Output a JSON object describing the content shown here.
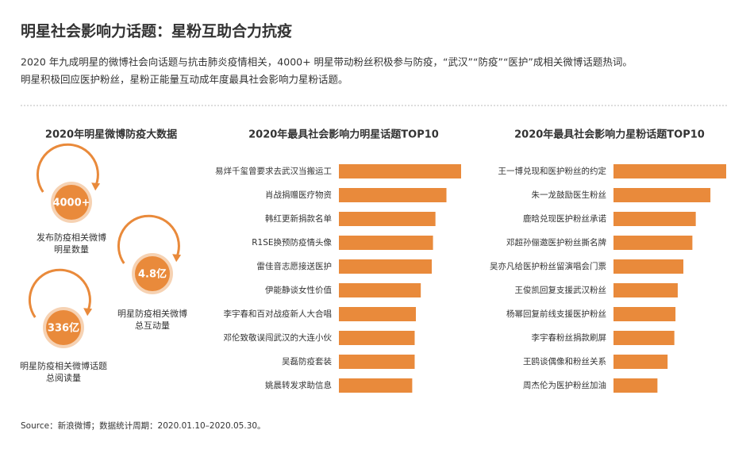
{
  "header": {
    "title": "明星社会影响力话题：星粉互助合力抗疫",
    "description": [
      "2020 年九成明星的微博社会向话题与抗击肺炎疫情相关，4000+ 明星带动粉丝积极参与防疫，“武汉”“防疫”“医护”成相关微博话题热词。",
      "明星积极回应医护粉丝，星粉正能量互动成年度最具社会影响力星粉话题。"
    ]
  },
  "stats": {
    "title": "2020年明星微博防疫大数据",
    "items": [
      {
        "value": "4000+",
        "label": [
          "发布防疫相关微博",
          "明星数量"
        ]
      },
      {
        "value": "4.8亿",
        "label": [
          "明星防疫相关微博",
          "总互动量"
        ]
      },
      {
        "value": "336亿",
        "label": [
          "明星防疫相关微博话题",
          "总阅读量"
        ]
      }
    ]
  },
  "chart_data": [
    {
      "type": "hbar",
      "title": "2020年最具社会影响力明星话题TOP10",
      "color": "#e98a3b",
      "categories": [
        "易烊千玺曾要求去武汉当搬运工",
        "肖战捐赠医疗物资",
        "韩红更新捐款名单",
        "R1SE换预防疫情头像",
        "雷佳音志愿接送医护",
        "伊能静谈女性价值",
        "李宇春和百对战疫新人大合唱",
        "邓伦致敬误闯武汉的大连小伙",
        "吴磊防疫套装",
        "姚晨转发求助信息"
      ],
      "values": [
        100,
        88,
        79,
        77,
        76,
        67,
        63,
        62,
        62,
        60
      ]
    },
    {
      "type": "hbar",
      "title": "2020年最具社会影响力星粉话题TOP10",
      "color": "#e98a3b",
      "categories": [
        "王一博兑现和医护粉丝的约定",
        "朱一龙鼓励医生粉丝",
        "鹿晗兑现医护粉丝承诺",
        "邓超孙俪邀医护粉丝撕名牌",
        "吴亦凡给医护粉丝留演唱会门票",
        "王俊凯回复支援武汉粉丝",
        "杨幂回复前线支援医护粉丝",
        "李宇春粉丝捐款刷屏",
        "王鸥谈偶像和粉丝关系",
        "周杰伦为医护粉丝加油"
      ],
      "values": [
        100,
        86,
        73,
        70,
        62,
        57,
        55,
        54,
        48,
        39
      ]
    }
  ],
  "source": "Source：新浪微博；数据统计周期：2020.01.10–2020.05.30。"
}
